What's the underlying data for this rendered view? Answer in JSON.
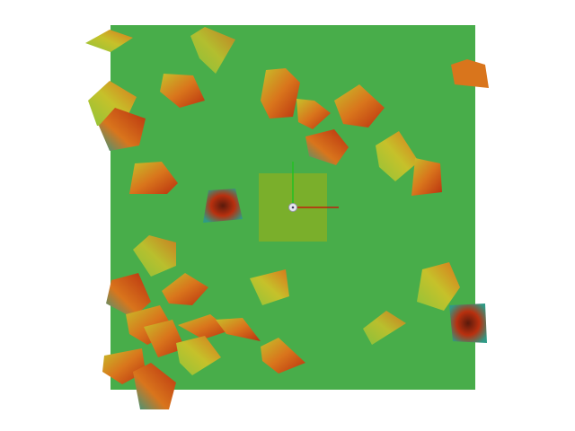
{
  "scene": {
    "ground_color": "#48ad4a",
    "selection_color": "#7aaf2b",
    "axes": {
      "x_color": "#c0200a",
      "y_color": "#22c022",
      "origin_color": "#e8e8f0"
    },
    "palette": {
      "red": "#b8300f",
      "orange": "#d9751c",
      "yellow": "#c6c12a",
      "lime": "#8fc43a",
      "teal": "#2f9a86",
      "dark": "#5a1a0c"
    }
  }
}
